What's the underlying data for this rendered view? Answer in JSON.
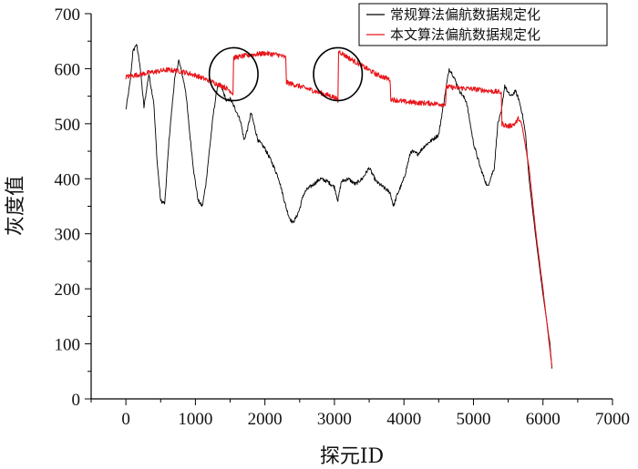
{
  "chart_data": {
    "type": "line",
    "title": "",
    "xlabel": "探元ID",
    "ylabel": "灰度值",
    "xlim": [
      -500,
      7000
    ],
    "ylim": [
      0,
      700
    ],
    "x_ticks": [
      "0",
      "1000",
      "2000",
      "3000",
      "4000",
      "5000",
      "6000",
      "7000"
    ],
    "y_ticks": [
      "0",
      "100",
      "200",
      "300",
      "400",
      "500",
      "600",
      "700"
    ],
    "grid": false,
    "legend_position": "top-right",
    "series": [
      {
        "name": "常规算法偏航数据规定化",
        "color": "#000000",
        "x": [
          0,
          60,
          100,
          150,
          200,
          260,
          330,
          400,
          450,
          500,
          560,
          620,
          700,
          760,
          800,
          860,
          920,
          980,
          1040,
          1100,
          1150,
          1200,
          1260,
          1320,
          1380,
          1450,
          1500,
          1560,
          1600,
          1650,
          1700,
          1750,
          1800,
          1900,
          2000,
          2100,
          2200,
          2300,
          2350,
          2400,
          2450,
          2500,
          2550,
          2600,
          2650,
          2700,
          2800,
          2900,
          3000,
          3050,
          3100,
          3200,
          3300,
          3400,
          3500,
          3600,
          3700,
          3800,
          3850,
          3900,
          4000,
          4100,
          4200,
          4300,
          4400,
          4500,
          4600,
          4650,
          4700,
          4800,
          4900,
          5000,
          5100,
          5200,
          5300,
          5350,
          5400,
          5450,
          5500,
          5550,
          5600,
          5650,
          5700,
          5750,
          5800,
          5900,
          6000,
          6100,
          6130
        ],
        "y": [
          525,
          575,
          630,
          645,
          610,
          530,
          590,
          540,
          430,
          360,
          355,
          470,
          580,
          615,
          595,
          560,
          480,
          410,
          360,
          350,
          390,
          450,
          520,
          570,
          565,
          540,
          545,
          530,
          520,
          505,
          470,
          490,
          520,
          470,
          455,
          430,
          400,
          350,
          330,
          320,
          330,
          345,
          370,
          380,
          385,
          390,
          400,
          395,
          385,
          360,
          395,
          400,
          390,
          400,
          420,
          395,
          385,
          375,
          350,
          370,
          400,
          450,
          445,
          460,
          470,
          480,
          560,
          600,
          590,
          560,
          540,
          465,
          420,
          385,
          420,
          500,
          520,
          570,
          555,
          550,
          560,
          545,
          520,
          480,
          400,
          290,
          190,
          100,
          55
        ]
      },
      {
        "name": "本文算法偏航数据规定化",
        "color": "#e8161b",
        "x": [
          0,
          300,
          600,
          800,
          1000,
          1200,
          1400,
          1500,
          1540,
          1550,
          1800,
          2000,
          2200,
          2300,
          2310,
          2500,
          2700,
          2900,
          3000,
          3050,
          3060,
          3200,
          3400,
          3600,
          3800,
          3810,
          4000,
          4200,
          4400,
          4600,
          4610,
          4800,
          5000,
          5200,
          5400,
          5410,
          5500,
          5600,
          5650,
          5700,
          5800,
          5900,
          6000,
          6100,
          6130
        ],
        "y": [
          585,
          592,
          598,
          595,
          588,
          578,
          568,
          560,
          555,
          620,
          625,
          628,
          625,
          620,
          575,
          568,
          560,
          552,
          548,
          542,
          632,
          620,
          605,
          590,
          580,
          545,
          540,
          538,
          537,
          535,
          567,
          565,
          563,
          560,
          557,
          500,
          495,
          500,
          510,
          495,
          420,
          300,
          200,
          90,
          58
        ]
      }
    ],
    "annotations": [
      {
        "type": "ellipse",
        "cx": 1550,
        "cy": 590,
        "rx": 350,
        "ry": 48
      },
      {
        "type": "ellipse",
        "cx": 3050,
        "cy": 590,
        "rx": 350,
        "ry": 48
      }
    ]
  }
}
